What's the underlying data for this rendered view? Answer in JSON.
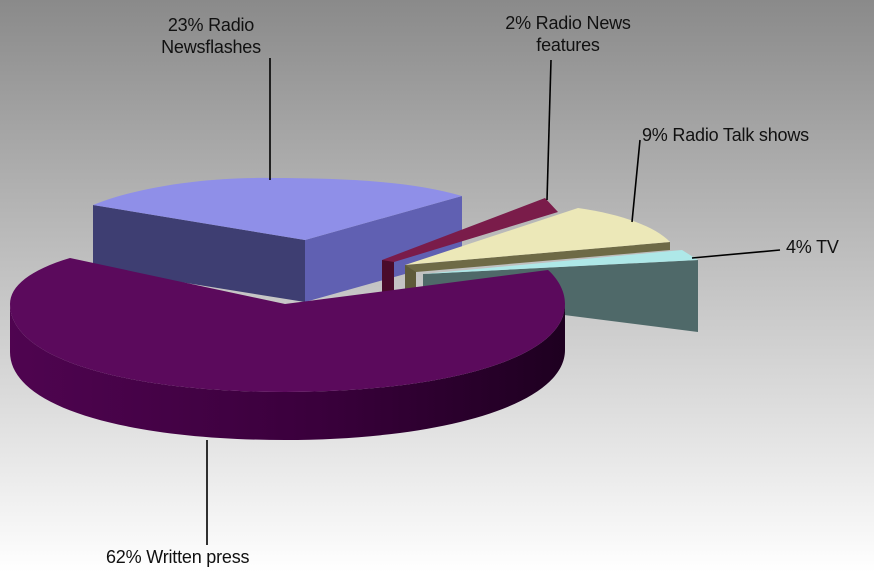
{
  "chart_data": {
    "type": "pie",
    "style": "3d-exploded",
    "background": {
      "top": "#8a8a8a",
      "bottom": "#ffffff"
    },
    "slices": [
      {
        "category": "Written press",
        "value": 62,
        "label_line1": "62% Written press",
        "label_line2": "",
        "color": "#5b0a5c"
      },
      {
        "category": "Radio Newsflashes",
        "value": 23,
        "label_line1": "23% Radio",
        "label_line2": "Newsflashes",
        "color": "#8f8fe8"
      },
      {
        "category": "Radio News features",
        "value": 2,
        "label_line1": "2% Radio News",
        "label_line2": "features",
        "color": "#7a1c4a"
      },
      {
        "category": "Radio Talk shows",
        "value": 9,
        "label_line1": "9% Radio Talk shows",
        "label_line2": "",
        "color": "#ece8b8"
      },
      {
        "category": "TV",
        "value": 4,
        "label_line1": "4% TV",
        "label_line2": "",
        "color": "#aee8e8"
      }
    ]
  }
}
